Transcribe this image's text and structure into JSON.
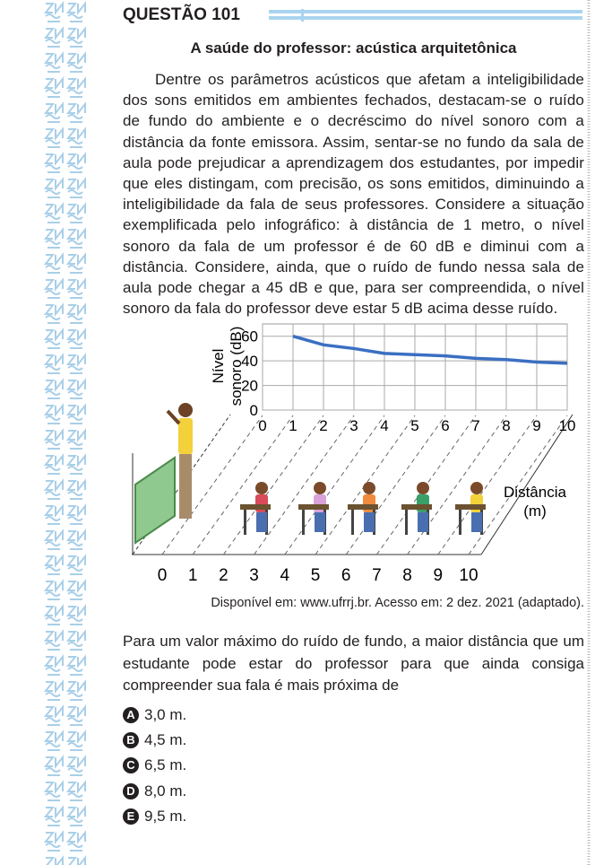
{
  "question": {
    "title": "QUESTÃO 101",
    "heading": "A saúde do professor: acústica arquitetônica",
    "paragraph": "Dentre os parâmetros acústicos que afetam a inteligibilidade dos sons emitidos em ambientes fechados, destacam-se o ruído de fundo do ambiente e o decréscimo do nível sonoro com a distância da fonte emissora. Assim, sentar-se no fundo da sala de aula pode prejudicar a aprendizagem dos estudantes, por impedir que eles distingam, com precisão, os sons emitidos, diminuindo a inteligibilidade da fala de seus professores. Considere a situação exemplificada pelo infográfico: à distância de 1 metro, o nível sonoro da fala de um professor é de 60 dB e diminui com a distância. Considere, ainda, que o ruído de fundo nessa sala de aula pode chegar a 45 dB e que, para ser compreendida, o nível sonoro da fala do professor deve estar 5 dB acima desse ruído.",
    "source": "Disponível em: www.ufrrj.br. Acesso em: 2 dez. 2021 (adaptado).",
    "prompt": "Para um valor máximo do ruído de fundo, a maior distância que um estudante pode estar do professor para que ainda consiga compreender sua fala é mais próxima de",
    "options": [
      {
        "letter": "A",
        "text": "3,0 m."
      },
      {
        "letter": "B",
        "text": "4,5 m."
      },
      {
        "letter": "C",
        "text": "6,5 m."
      },
      {
        "letter": "D",
        "text": "8,0 m."
      },
      {
        "letter": "E",
        "text": "9,5 m."
      }
    ]
  },
  "figure": {
    "type": "line",
    "y_label_lines": [
      "Nível",
      "sonoro (dB)"
    ],
    "x_label_lines": [
      "Distância",
      "(m)"
    ],
    "x": [
      1,
      2,
      3,
      4,
      5,
      6,
      7,
      8,
      9,
      10
    ],
    "values": [
      60,
      53,
      50,
      46,
      45,
      44,
      42,
      41,
      39,
      38
    ],
    "color": "#3b6fc2",
    "xlim": [
      0,
      10
    ],
    "ylim": [
      0,
      70
    ],
    "xticks": [
      0,
      1,
      2,
      3,
      4,
      5,
      6,
      7,
      8,
      9,
      10
    ],
    "yticks": [
      0,
      20,
      40,
      60
    ],
    "grid": true,
    "floor_labels": [
      0,
      1,
      2,
      3,
      4,
      5,
      6,
      7,
      8,
      9,
      10
    ]
  }
}
